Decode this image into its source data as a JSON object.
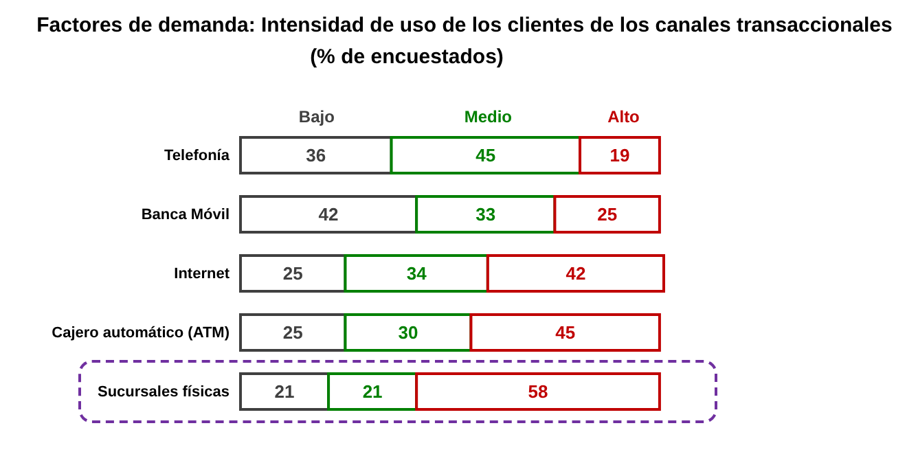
{
  "chart_data": {
    "type": "bar",
    "orientation": "horizontal",
    "stacked": true,
    "data_labels": true,
    "legend": "top",
    "title": "Factores de demanda: Intensidad de uso de los clientes de los canales transaccionales",
    "subtitle": "(% de encuestados)",
    "categories": [
      "Telefonía",
      "Banca Móvil",
      "Internet",
      "Cajero automático (ATM)",
      "Sucursales físicas"
    ],
    "series": [
      {
        "name": "Bajo",
        "color": "#404040",
        "values": [
          36,
          42,
          25,
          25,
          21
        ]
      },
      {
        "name": "Medio",
        "color": "#008000",
        "values": [
          45,
          33,
          34,
          30,
          21
        ]
      },
      {
        "name": "Alto",
        "color": "#c00000",
        "values": [
          19,
          25,
          42,
          45,
          58
        ]
      }
    ]
  }
}
